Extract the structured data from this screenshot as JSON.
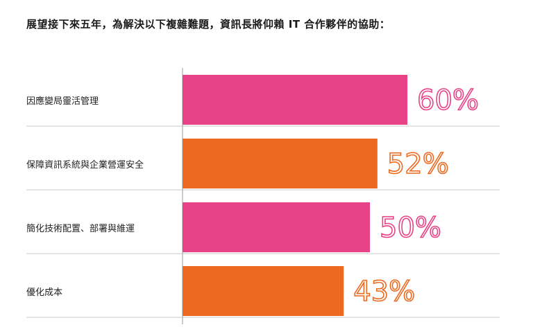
{
  "title": "展望接下來五年，為解決以下複雜難題，資訊長將仰賴 IT 合作夥伴的協助：",
  "colors": {
    "pink": "#e84286",
    "orange": "#ec6a20",
    "axis": "#999999",
    "divider": "#c8c8c8"
  },
  "chart_data": {
    "type": "bar",
    "orientation": "horizontal",
    "categories": [
      "因應變局靈活管理",
      "保障資訊系統與企業營運安全",
      "簡化技術配置、部署與維運",
      "優化成本"
    ],
    "values": [
      60,
      52,
      50,
      43
    ],
    "value_labels": [
      "60%",
      "52%",
      "50%",
      "43%"
    ],
    "bar_colors": [
      "#e84286",
      "#ec6a20",
      "#e84286",
      "#ec6a20"
    ],
    "xlim": [
      0,
      100
    ],
    "grid": false,
    "legend": "none"
  }
}
